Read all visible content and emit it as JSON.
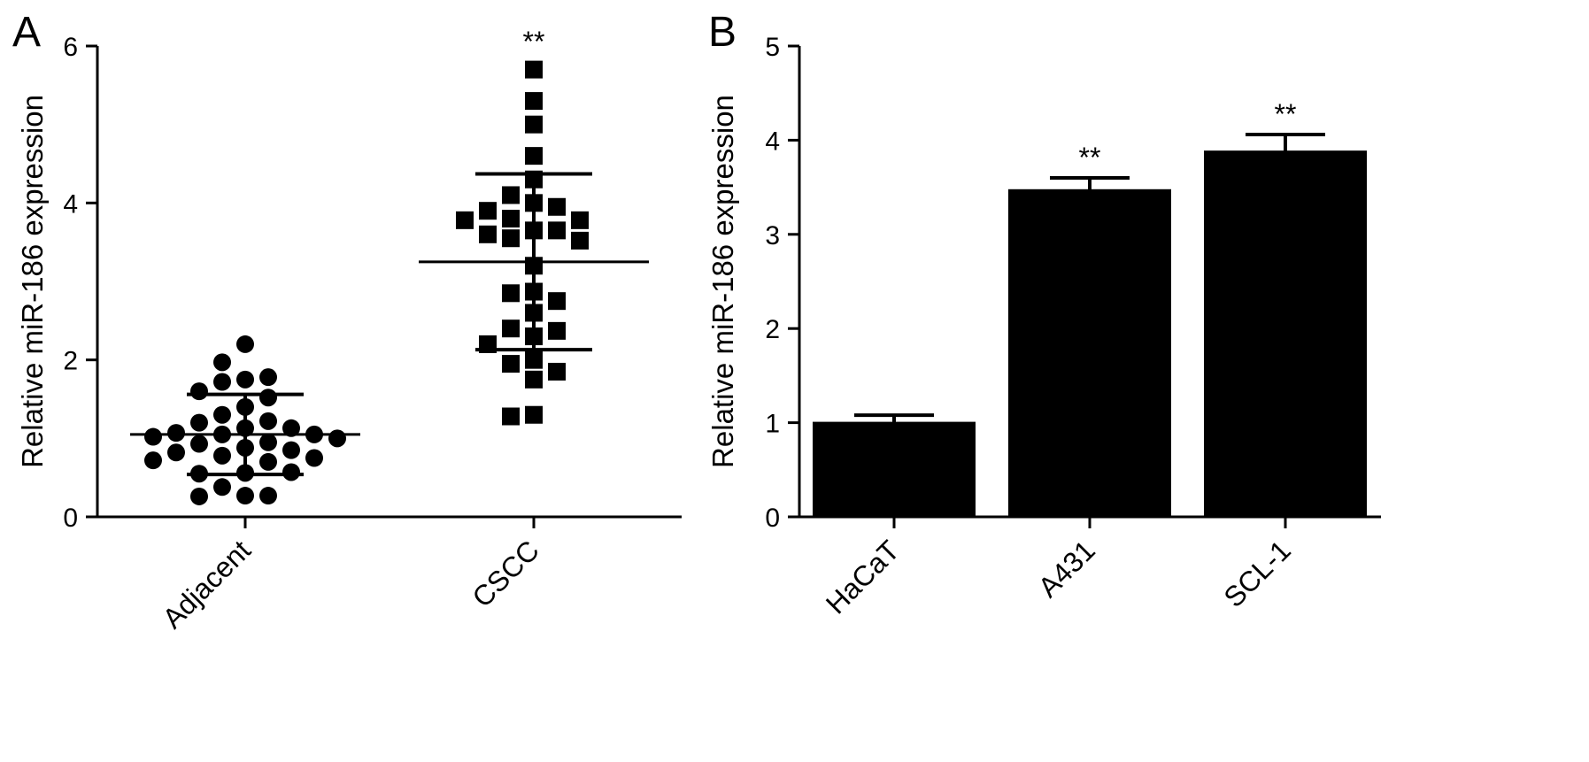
{
  "chart_data": [
    {
      "panel": "A",
      "type": "scatter",
      "ylabel": "Relative miR-186 expression",
      "xlabel": "",
      "categories": [
        "Adjacent",
        "CSCC"
      ],
      "ylim": [
        0,
        6
      ],
      "yticks": [
        0,
        2,
        4,
        6
      ],
      "grid": false,
      "series": [
        {
          "category": "Adjacent",
          "marker": "circle",
          "values": [
            2.2,
            1.97,
            1.75,
            1.72,
            1.78,
            1.52,
            1.6,
            1.4,
            1.3,
            1.22,
            1.13,
            1.2,
            1.13,
            1.07,
            1.05,
            1.05,
            1.02,
            1.0,
            0.95,
            0.93,
            0.88,
            0.85,
            0.82,
            0.78,
            0.75,
            0.72,
            0.7,
            0.56,
            0.55,
            0.57,
            0.38,
            0.27,
            0.27,
            0.26
          ],
          "mean": 1.05,
          "sd": 0.51
        },
        {
          "category": "CSCC",
          "marker": "square",
          "values": [
            5.7,
            5.3,
            5.0,
            4.6,
            4.3,
            4.1,
            4.0,
            3.95,
            3.9,
            3.8,
            3.78,
            3.78,
            3.65,
            3.65,
            3.6,
            3.55,
            3.52,
            3.2,
            2.87,
            2.85,
            2.75,
            2.6,
            2.4,
            2.37,
            2.3,
            2.2,
            2.0,
            1.95,
            1.85,
            1.75,
            1.3,
            1.28
          ],
          "mean": 3.25,
          "sd": 1.12
        }
      ],
      "annotations": [
        {
          "category": "CSCC",
          "text": "**"
        }
      ]
    },
    {
      "panel": "B",
      "type": "bar",
      "ylabel": "Relative miR-186 expression",
      "xlabel": "",
      "categories": [
        "HaCaT",
        "A431",
        "SCL-1"
      ],
      "values": [
        1.0,
        3.47,
        3.88
      ],
      "errors": [
        0.08,
        0.13,
        0.18
      ],
      "ylim": [
        0,
        5
      ],
      "yticks": [
        0,
        1,
        2,
        3,
        4,
        5
      ],
      "grid": false,
      "bar_color": "#000000",
      "annotations": [
        {
          "category": "HaCaT",
          "text": ""
        },
        {
          "category": "A431",
          "text": "**"
        },
        {
          "category": "SCL-1",
          "text": "**"
        }
      ]
    }
  ]
}
